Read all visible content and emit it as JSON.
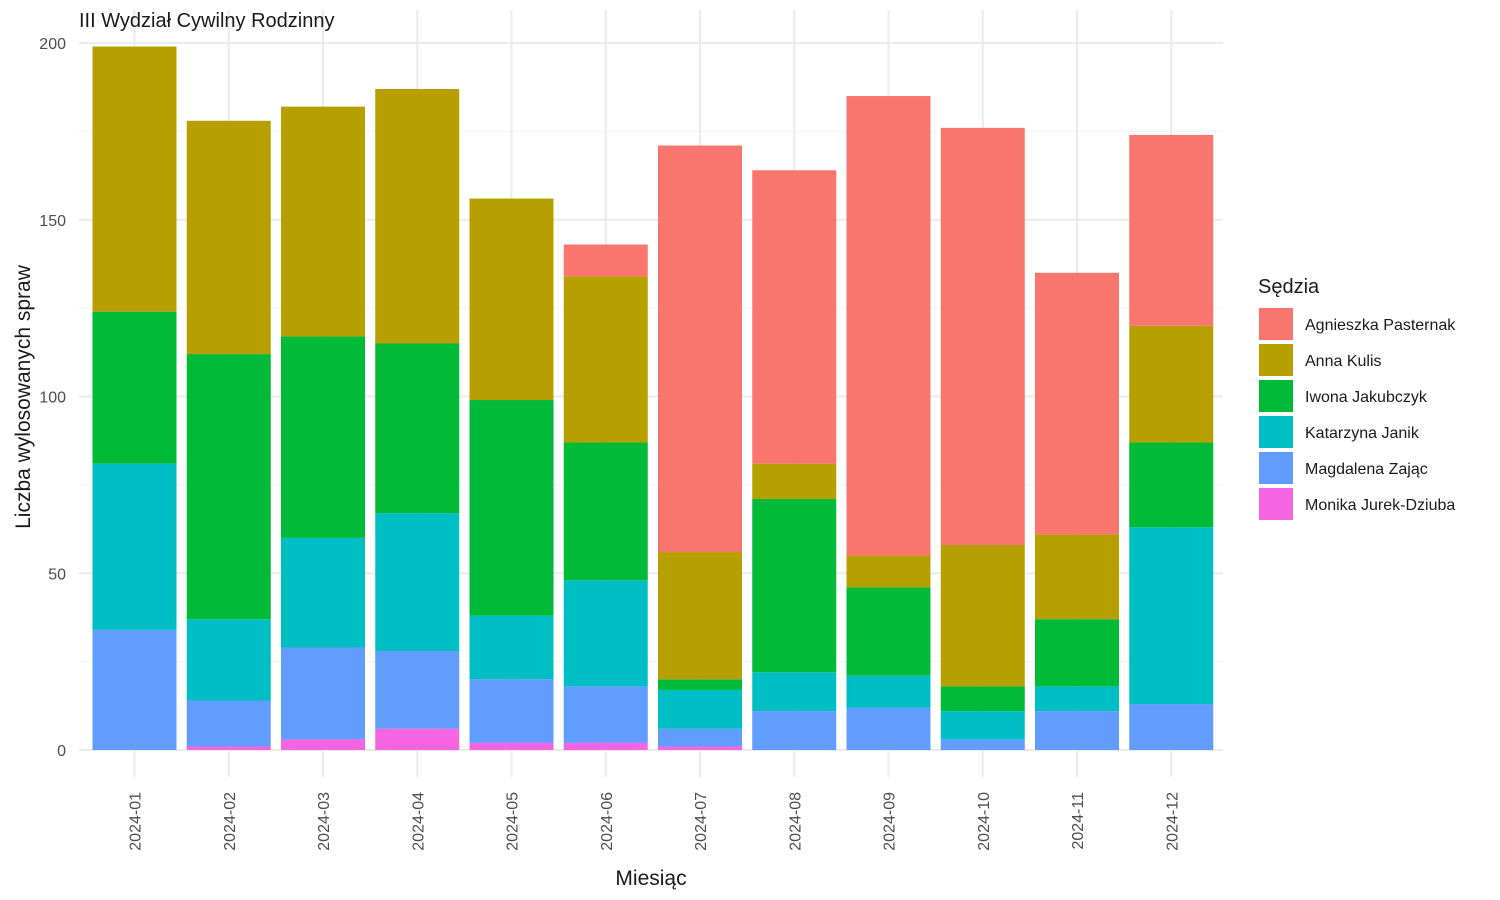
{
  "chart_data": {
    "type": "bar",
    "stacked": true,
    "title": "III Wydział Cywilny Rodzinny",
    "xlabel": "Miesiąc",
    "ylabel": "Liczba wylosowanych spraw",
    "ylim": [
      0,
      200
    ],
    "yticks": [
      0,
      50,
      100,
      150,
      200
    ],
    "grid": true,
    "legend_title": "Sędzia",
    "legend_position": "right",
    "categories": [
      "2024-01",
      "2024-02",
      "2024-03",
      "2024-04",
      "2024-05",
      "2024-06",
      "2024-07",
      "2024-08",
      "2024-09",
      "2024-10",
      "2024-11",
      "2024-12"
    ],
    "series": [
      {
        "name": "Agnieszka Pasternak",
        "color": "#F8766D",
        "values": [
          0,
          0,
          0,
          0,
          0,
          9,
          115,
          83,
          130,
          118,
          74,
          54
        ]
      },
      {
        "name": "Anna Kulis",
        "color": "#B79F00",
        "values": [
          75,
          66,
          65,
          72,
          57,
          47,
          36,
          10,
          9,
          40,
          24,
          33
        ]
      },
      {
        "name": "Iwona Jakubczyk",
        "color": "#00BA38",
        "values": [
          43,
          75,
          57,
          48,
          61,
          39,
          3,
          49,
          25,
          7,
          19,
          24
        ]
      },
      {
        "name": "Katarzyna Janik",
        "color": "#00BFC4",
        "values": [
          47,
          23,
          31,
          39,
          18,
          30,
          11,
          11,
          9,
          8,
          7,
          50
        ]
      },
      {
        "name": "Magdalena Zając",
        "color": "#619CFF",
        "values": [
          34,
          13,
          26,
          22,
          18,
          16,
          5,
          11,
          12,
          3,
          11,
          13
        ]
      },
      {
        "name": "Monika Jurek-Dziuba",
        "color": "#F564E3",
        "values": [
          0,
          1,
          3,
          6,
          2,
          2,
          1,
          0,
          0,
          0,
          0,
          0
        ]
      }
    ]
  }
}
